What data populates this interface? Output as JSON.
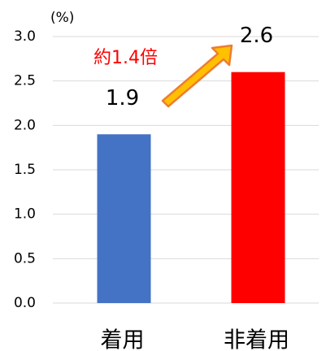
{
  "chart_data": {
    "type": "bar",
    "y_axis_label": "(%)",
    "categories": [
      "着用",
      "非着用"
    ],
    "values": [
      1.9,
      2.6
    ],
    "colors": [
      "#4472c4",
      "#ff0000"
    ],
    "ylim": [
      0,
      3
    ],
    "yticks": [
      {
        "value": 0,
        "label": "0.0"
      },
      {
        "value": 0.5,
        "label": "0.5"
      },
      {
        "value": 1,
        "label": "1.0"
      },
      {
        "value": 1.5,
        "label": "1.5"
      },
      {
        "value": 2,
        "label": "2.0"
      },
      {
        "value": 2.5,
        "label": "2.5"
      },
      {
        "value": 3,
        "label": "3.0"
      }
    ],
    "grid": true,
    "annotation": "約1.4倍"
  }
}
